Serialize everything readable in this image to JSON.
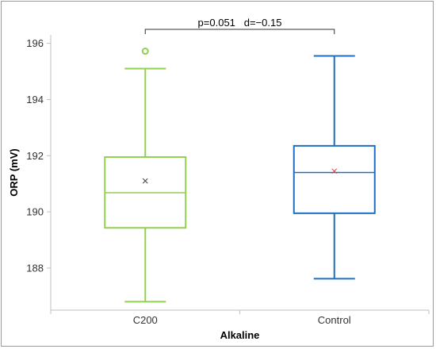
{
  "chart_data": {
    "type": "box",
    "title": "",
    "xlabel": "Alkaline",
    "ylabel": "ORP (mV)",
    "ylim": [
      186.5,
      196.3
    ],
    "yticks": [
      188,
      190,
      192,
      194,
      196
    ],
    "grid": false,
    "legend": "none",
    "categories": [
      "C200",
      "Control"
    ],
    "boxes": [
      {
        "category": "C200",
        "color": "#92d050",
        "whisker_low": 186.8,
        "q1": 189.43,
        "median": 190.68,
        "q3": 191.95,
        "whisker_high": 195.1,
        "mean": 191.1,
        "outliers": [
          195.72
        ]
      },
      {
        "category": "Control",
        "color": "#1f6fc0",
        "whisker_low": 187.62,
        "q1": 189.95,
        "median": 191.4,
        "q3": 192.35,
        "whisker_high": 195.55,
        "mean": 191.45,
        "outliers": []
      }
    ],
    "annotation": {
      "text": "p=0.051   d=−0.15",
      "from": "C200",
      "to": "Control"
    }
  }
}
